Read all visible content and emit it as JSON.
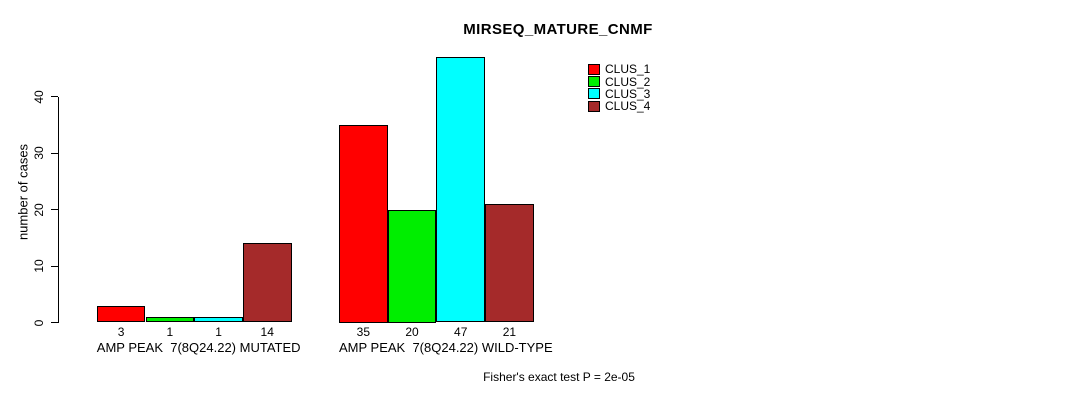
{
  "title": "MIRSEQ_MATURE_CNMF",
  "footer": "Fisher's exact test P = 2e-05",
  "chart_data": {
    "type": "bar",
    "title": "MIRSEQ_MATURE_CNMF",
    "xlabel": "",
    "ylabel": "number of cases",
    "ylim": [
      0,
      47
    ],
    "y_ticks": [
      0,
      10,
      20,
      30,
      40
    ],
    "grid": false,
    "legend_position": "top-right",
    "bar_value_labels": true,
    "categories": [
      "AMP PEAK  7(8Q24.22) MUTATED",
      "AMP PEAK  7(8Q24.22) WILD-TYPE"
    ],
    "series": [
      {
        "name": "CLUS_1",
        "color": "#ff0000",
        "values": [
          3,
          35
        ]
      },
      {
        "name": "CLUS_2",
        "color": "#00ee00",
        "values": [
          1,
          20
        ]
      },
      {
        "name": "CLUS_3",
        "color": "#00ffff",
        "values": [
          1,
          47
        ]
      },
      {
        "name": "CLUS_4",
        "color": "#a52a2a",
        "values": [
          14,
          21
        ]
      }
    ],
    "annotation": "Fisher's exact test P = 2e-05"
  }
}
